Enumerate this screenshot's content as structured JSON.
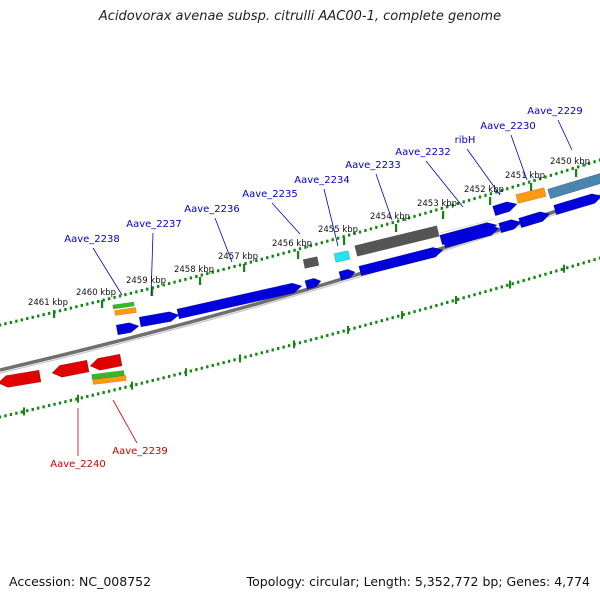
{
  "title": "Acidovorax avenae subsp. citrulli AAC00-1, complete genome",
  "footer": {
    "accession": "Accession: NC_008752",
    "summary": "Topology: circular; Length: 5,352,772 bp; Genes: 4,774"
  },
  "colors": {
    "forward": "#0000dd",
    "reverse": "#e00000",
    "grey": "#555555",
    "cyan": "#22e4f0",
    "orange": "#ff9a10",
    "green": "#33bb22",
    "steel": "#4a85b0",
    "tick": "#118811"
  },
  "kbp_ticks": [
    {
      "label": "2450 kbp"
    },
    {
      "label": "2451 kbp"
    },
    {
      "label": "2452 kbp"
    },
    {
      "label": "2453 kbp"
    },
    {
      "label": "2454 kbp"
    },
    {
      "label": "2455 kbp"
    },
    {
      "label": "2456 kbp"
    },
    {
      "label": "2457 kbp"
    },
    {
      "label": "2458 kbp"
    },
    {
      "label": "2459 kbp"
    },
    {
      "label": "2460 kbp"
    },
    {
      "label": "2461 kbp"
    }
  ],
  "gene_labels_forward": [
    {
      "text": "Aave_2229"
    },
    {
      "text": "Aave_2230"
    },
    {
      "text": "ribH"
    },
    {
      "text": "Aave_2232"
    },
    {
      "text": "Aave_2233"
    },
    {
      "text": "Aave_2234"
    },
    {
      "text": "Aave_2235"
    },
    {
      "text": "Aave_2236"
    },
    {
      "text": "Aave_2237"
    },
    {
      "text": "Aave_2238"
    }
  ],
  "gene_labels_reverse": [
    {
      "text": "Aave_2239"
    },
    {
      "text": "Aave_2240"
    }
  ]
}
